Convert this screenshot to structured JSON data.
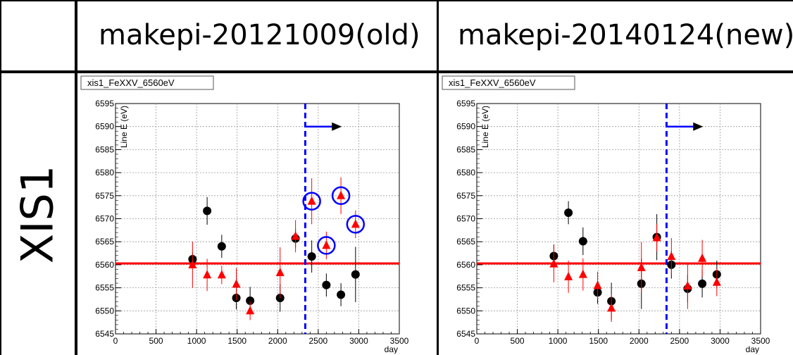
{
  "table": {
    "header_left": "makepi-20121009(old)",
    "header_right": "makepi-20140124(new)",
    "row_label": "XIS1"
  },
  "colors": {
    "black_series": "#000000",
    "red_series": "#ff0000",
    "reference_line": "#ff0000",
    "cut_line": "#0000ff",
    "highlight_circle": "#0000ff"
  },
  "chart_data": [
    {
      "type": "scatter",
      "title": "xis1_FeXXV_6560eV",
      "ylabel": "Line E (eV)",
      "xlabel": "day",
      "xlim": [
        0,
        3500
      ],
      "ylim": [
        6545,
        6595
      ],
      "xticks": [
        "0",
        "500",
        "1000",
        "1500",
        "2000",
        "2500",
        "3000",
        "3500"
      ],
      "yticks": [
        "6545",
        "6550",
        "6555",
        "6560",
        "6565",
        "6570",
        "6575",
        "6580",
        "6585",
        "6590",
        "6595"
      ],
      "grid": true,
      "reference_y": 6560.3,
      "cut_x": 2340,
      "arrow": {
        "x_from": 2340,
        "x_to": 2790,
        "y": 6590
      },
      "series": [
        {
          "marker": "circle",
          "color": "#000000",
          "points": [
            {
              "x": 950,
              "y": 6561.2,
              "err": 1.5
            },
            {
              "x": 1130,
              "y": 6571.7,
              "err": 3.0
            },
            {
              "x": 1310,
              "y": 6564.0,
              "err": 2.5
            },
            {
              "x": 1490,
              "y": 6552.8,
              "err": 2.5
            },
            {
              "x": 1660,
              "y": 6552.2,
              "err": 3.0
            },
            {
              "x": 2030,
              "y": 6552.8,
              "err": 3.0
            },
            {
              "x": 2220,
              "y": 6565.7,
              "err": 2.0
            },
            {
              "x": 2420,
              "y": 6561.8,
              "err": 3.5
            },
            {
              "x": 2600,
              "y": 6555.6,
              "err": 2.5
            },
            {
              "x": 2780,
              "y": 6553.5,
              "err": 2.5
            },
            {
              "x": 2960,
              "y": 6557.9,
              "err": 6.0
            }
          ]
        },
        {
          "marker": "triangle",
          "color": "#ff0000",
          "points": [
            {
              "x": 950,
              "y": 6560.0,
              "err": 5.0
            },
            {
              "x": 1130,
              "y": 6557.8,
              "err": 3.5
            },
            {
              "x": 1310,
              "y": 6557.8,
              "err": 2.0
            },
            {
              "x": 1490,
              "y": 6555.8,
              "err": 3.5
            },
            {
              "x": 1660,
              "y": 6550.0,
              "err": 2.0
            },
            {
              "x": 2030,
              "y": 6558.3,
              "err": 5.5
            },
            {
              "x": 2220,
              "y": 6566.2,
              "err": 3.5
            },
            {
              "x": 2420,
              "y": 6573.8,
              "err": 5.0
            },
            {
              "x": 2600,
              "y": 6564.2,
              "err": 3.0
            },
            {
              "x": 2780,
              "y": 6575.0,
              "err": 4.0
            },
            {
              "x": 2960,
              "y": 6568.8,
              "err": 3.0
            }
          ]
        }
      ],
      "highlighted": [
        {
          "x": 2420,
          "y": 6573.8
        },
        {
          "x": 2600,
          "y": 6564.2
        },
        {
          "x": 2780,
          "y": 6575.0
        },
        {
          "x": 2960,
          "y": 6568.8
        }
      ]
    },
    {
      "type": "scatter",
      "title": "xis1_FeXXV_6560eV",
      "ylabel": "Line E (eV)",
      "xlabel": "day",
      "xlim": [
        0,
        3500
      ],
      "ylim": [
        6545,
        6595
      ],
      "xticks": [
        "0",
        "500",
        "1000",
        "1500",
        "2000",
        "2500",
        "3000",
        "3500"
      ],
      "yticks": [
        "6545",
        "6550",
        "6555",
        "6560",
        "6565",
        "6570",
        "6575",
        "6580",
        "6585",
        "6590",
        "6595"
      ],
      "grid": true,
      "reference_y": 6560.3,
      "cut_x": 2340,
      "arrow": {
        "x_from": 2340,
        "x_to": 2790,
        "y": 6590
      },
      "series": [
        {
          "marker": "circle",
          "color": "#000000",
          "points": [
            {
              "x": 950,
              "y": 6561.9,
              "err": 2.5
            },
            {
              "x": 1130,
              "y": 6571.3,
              "err": 2.5
            },
            {
              "x": 1310,
              "y": 6565.1,
              "err": 3.0
            },
            {
              "x": 1490,
              "y": 6554.0,
              "err": 2.5
            },
            {
              "x": 1660,
              "y": 6552.1,
              "err": 4.0
            },
            {
              "x": 2030,
              "y": 6555.9,
              "err": 5.5
            },
            {
              "x": 2220,
              "y": 6566.0,
              "err": 5.0
            },
            {
              "x": 2400,
              "y": 6560.0,
              "err": 3.0
            },
            {
              "x": 2600,
              "y": 6554.8,
              "err": 3.0
            },
            {
              "x": 2780,
              "y": 6555.9,
              "err": 3.0
            },
            {
              "x": 2960,
              "y": 6557.9,
              "err": 3.0
            }
          ]
        },
        {
          "marker": "triangle",
          "color": "#ff0000",
          "points": [
            {
              "x": 950,
              "y": 6560.2,
              "err": 4.0
            },
            {
              "x": 1130,
              "y": 6557.4,
              "err": 3.5
            },
            {
              "x": 1310,
              "y": 6557.9,
              "err": 3.5
            },
            {
              "x": 1490,
              "y": 6555.5,
              "err": 3.0
            },
            {
              "x": 1660,
              "y": 6550.6,
              "err": 3.0
            },
            {
              "x": 2030,
              "y": 6559.4,
              "err": 5.5
            },
            {
              "x": 2220,
              "y": 6565.9,
              "err": 3.0
            },
            {
              "x": 2400,
              "y": 6561.8,
              "err": 4.0
            },
            {
              "x": 2600,
              "y": 6555.4,
              "err": 5.0
            },
            {
              "x": 2780,
              "y": 6561.4,
              "err": 4.0
            },
            {
              "x": 2960,
              "y": 6556.2,
              "err": 3.0
            }
          ]
        }
      ],
      "highlighted": []
    }
  ]
}
